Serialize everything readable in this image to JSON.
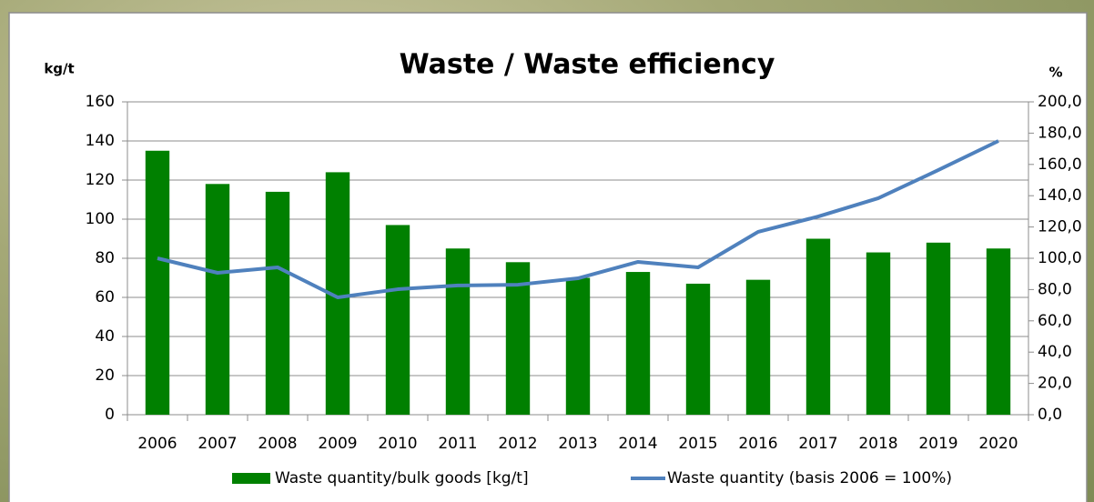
{
  "chart_data": {
    "type": "bar",
    "title": "Waste / Waste efficiency",
    "y_label": "kg/t",
    "y2_label": "%",
    "categories": [
      "2006",
      "2007",
      "2008",
      "2009",
      "2010",
      "2011",
      "2012",
      "2013",
      "2014",
      "2015",
      "2016",
      "2017",
      "2018",
      "2019",
      "2020"
    ],
    "series": [
      {
        "name": "Waste quantity/bulk goods [kg/t]",
        "type": "bar",
        "color": "#008000",
        "axis": "y",
        "values": [
          135,
          118,
          114,
          124,
          97,
          85,
          78,
          70,
          73,
          67,
          69,
          90,
          83,
          88,
          85
        ]
      },
      {
        "name": "Waste quantity (basis 2006 = 100%)",
        "type": "line",
        "color": "#4f81bd",
        "axis": "y2",
        "values": [
          100,
          90.7,
          94.2,
          75,
          80.2,
          82.6,
          83.1,
          87.2,
          97.7,
          94.2,
          116.9,
          126.7,
          138.4,
          156.4,
          175
        ]
      }
    ],
    "ylim": [
      0,
      160
    ],
    "yticks": [
      0,
      20,
      40,
      60,
      80,
      100,
      120,
      140,
      160
    ],
    "y2lim": [
      0,
      200
    ],
    "y2ticks": [
      {
        "value": 0,
        "label": "0,0"
      },
      {
        "value": 20,
        "label": "20,0"
      },
      {
        "value": 40,
        "label": "40,0"
      },
      {
        "value": 60,
        "label": "60,0"
      },
      {
        "value": 80,
        "label": "80,0"
      },
      {
        "value": 100,
        "label": "100,0"
      },
      {
        "value": 120,
        "label": "120,0"
      },
      {
        "value": 140,
        "label": "140,0"
      },
      {
        "value": 160,
        "label": "160,0"
      },
      {
        "value": 180,
        "label": "180,0"
      },
      {
        "value": 200,
        "label": "200,0"
      }
    ],
    "grid": true,
    "legend": "bottom"
  }
}
